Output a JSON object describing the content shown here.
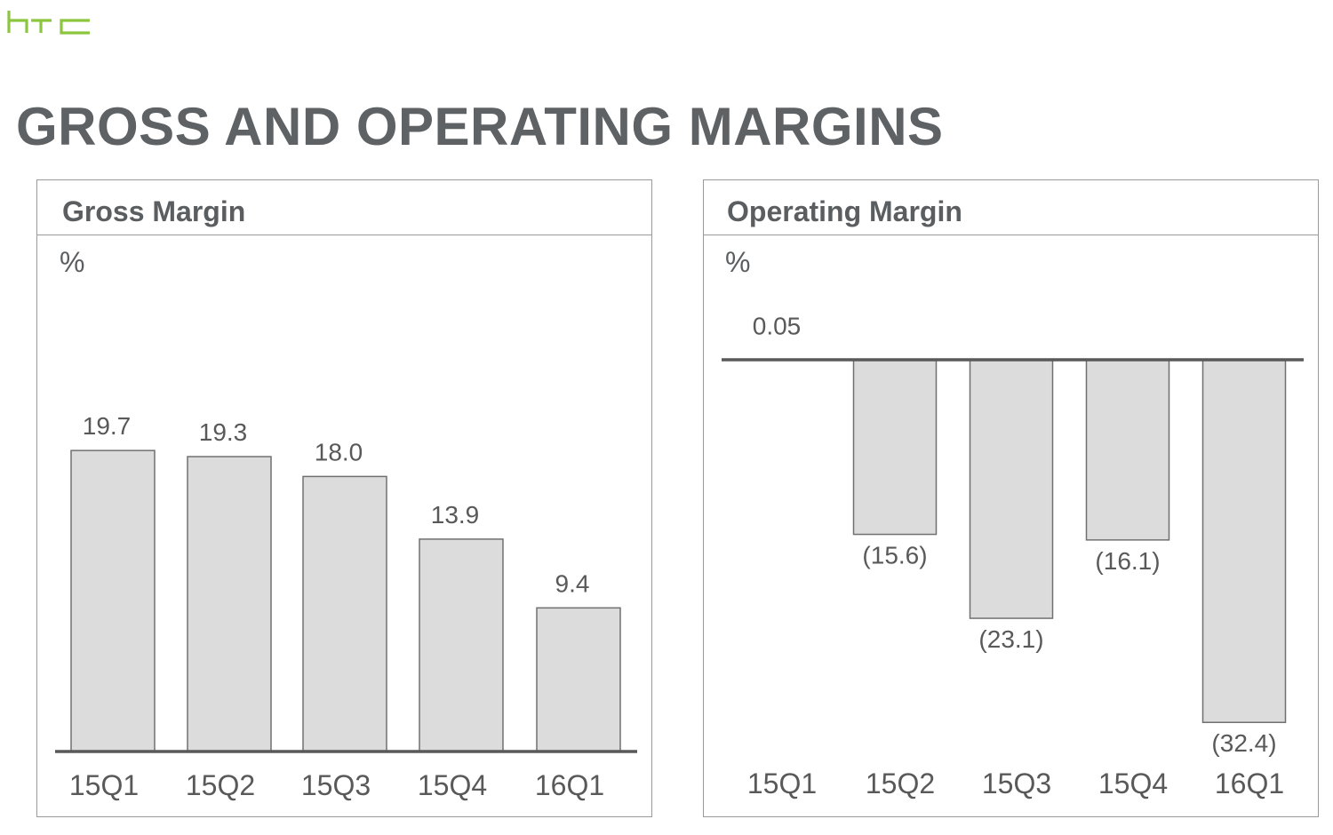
{
  "brand": {
    "logo_text": "htc",
    "logo_color": "#8cc63f"
  },
  "page": {
    "title": "GROSS AND OPERATING MARGINS"
  },
  "colors": {
    "bar_fill": "#dcdcdc",
    "bar_stroke": "#707070",
    "axis": "#595959",
    "text": "#595959"
  },
  "chart_data": [
    {
      "type": "bar",
      "title": "Gross Margin",
      "unit": "%",
      "categories": [
        "15Q1",
        "15Q2",
        "15Q3",
        "15Q4",
        "16Q1"
      ],
      "values": [
        19.7,
        19.3,
        18.0,
        13.9,
        9.4
      ],
      "labels": [
        "19.7",
        "19.3",
        "18.0",
        "13.9",
        "9.4"
      ],
      "ylim": [
        0,
        20
      ],
      "grid": false,
      "legend": "none"
    },
    {
      "type": "bar",
      "title": "Operating Margin",
      "unit": "%",
      "categories": [
        "15Q1",
        "15Q2",
        "15Q3",
        "15Q4",
        "16Q1"
      ],
      "values": [
        0.05,
        -15.6,
        -23.1,
        -16.1,
        -32.4
      ],
      "labels": [
        "0.05",
        "(15.6)",
        "(23.1)",
        "(16.1)",
        "(32.4)"
      ],
      "ylim": [
        -33,
        2
      ],
      "grid": false,
      "legend": "none"
    }
  ]
}
